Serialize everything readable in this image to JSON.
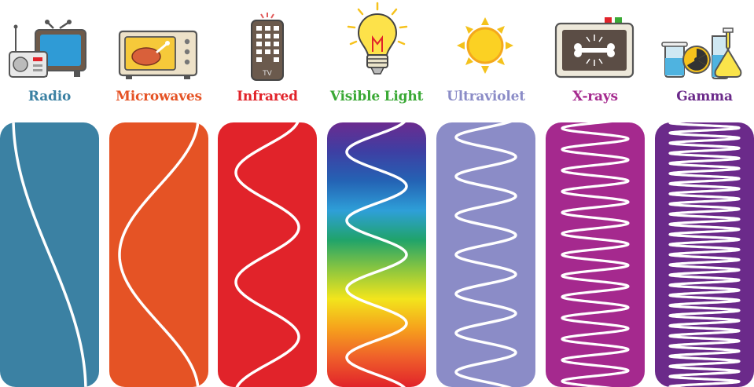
{
  "bands": [
    {
      "id": "radio",
      "label": "Radio",
      "color": "#3b81a3",
      "cycles": 0.5,
      "fill": "solid"
    },
    {
      "id": "microwaves",
      "label": "Microwaves",
      "color": "#e55325",
      "cycles": 1,
      "fill": "solid"
    },
    {
      "id": "infrared",
      "label": "Infrared",
      "color": "#e1232a",
      "cycles": 2.5,
      "fill": "solid"
    },
    {
      "id": "visible-light",
      "label": "Visible Light",
      "color": "#3aa935",
      "cycles": 4,
      "fill": "rainbow",
      "gradient": [
        "#6b2b8f",
        "#3d3fa3",
        "#2463b4",
        "#2e9fd8",
        "#20a36a",
        "#8cc63f",
        "#f2e51c",
        "#f6a21c",
        "#ef5f2a",
        "#e1232a"
      ]
    },
    {
      "id": "ultraviolet",
      "label": "Ultraviolet",
      "color": "#8b8cc7",
      "cycles": 7,
      "fill": "solid"
    },
    {
      "id": "x-rays",
      "label": "X-rays",
      "color": "#a5298e",
      "cycles": 13,
      "fill": "solid"
    },
    {
      "id": "gamma",
      "label": "Gamma",
      "color": "#6b2a8a",
      "cycles": 27,
      "fill": "solid"
    }
  ],
  "icons": {
    "radio": "radio-and-tv-icon",
    "microwaves": "microwave-oven-icon",
    "infrared": "tv-remote-icon",
    "visible-light": "light-bulb-icon",
    "ultraviolet": "sun-icon",
    "x-rays": "x-ray-bone-icon",
    "gamma": "radioactive-lab-flasks-icon"
  },
  "remote_text": "TV"
}
